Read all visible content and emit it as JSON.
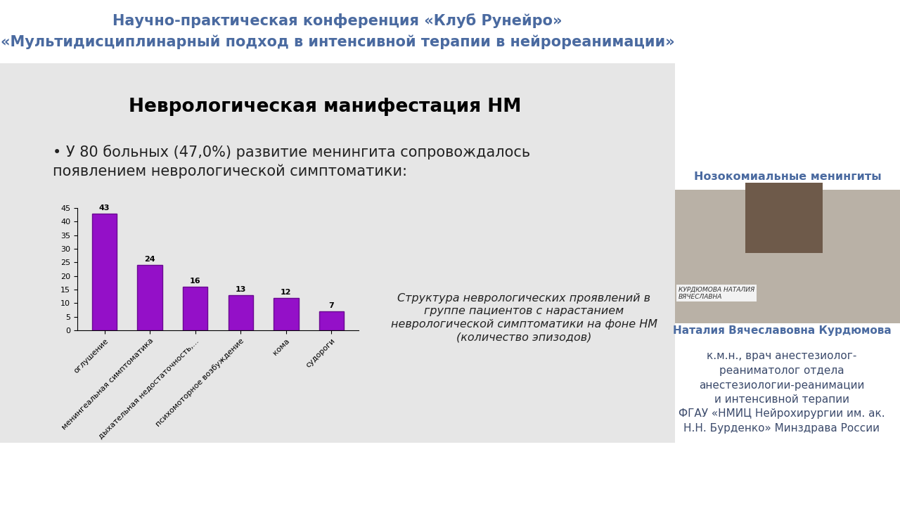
{
  "chart_data": {
    "type": "bar",
    "title": "Неврологическая манифестация НМ",
    "subtitle": "• У 80 больных (47,0%) развитие менингита сопровождалось\nпоявлением неврологической симптоматики:",
    "annotation": "Структура неврологических проявлений в\nгруппе пациентов с нарастанием\nневрологической симптоматики на фоне НМ\n(количество эпизодов)",
    "categories": [
      "оглушение",
      "менингеальная симптоматика",
      "дыхательная недостаточность,...",
      "психомоторное возбуждение",
      "кома",
      "судороги"
    ],
    "values": [
      43,
      24,
      16,
      13,
      12,
      7
    ],
    "color": "#9410c8",
    "ylim": [
      0,
      45
    ],
    "yticks": [
      0,
      5,
      10,
      15,
      20,
      25,
      30,
      35,
      40,
      45
    ],
    "grid": false,
    "data_labels": true
  },
  "slide": {
    "header": [
      "Научно-практическая конференция «Клуб Рунейро»",
      "«Мультидисциплинарный подход в интенсивной терапии в нейрореанимации»"
    ],
    "topic": "Нозокомиальные менингиты",
    "photo_caption": "КУРДЮМОВА НАТАЛИЯ\nВЯЧЕСЛАВНА",
    "speaker": "Наталия Вячеславовна Курдюмова",
    "bio": [
      "к.м.н., врач анестезиолог-",
      "реаниматолог отдела",
      "анестезиологии-реанимации",
      "и интенсивной терапии",
      "ФГАУ «НМИЦ Нейрохирургии им. ак.",
      "Н.Н. Бурденко» Минздрава России"
    ]
  }
}
